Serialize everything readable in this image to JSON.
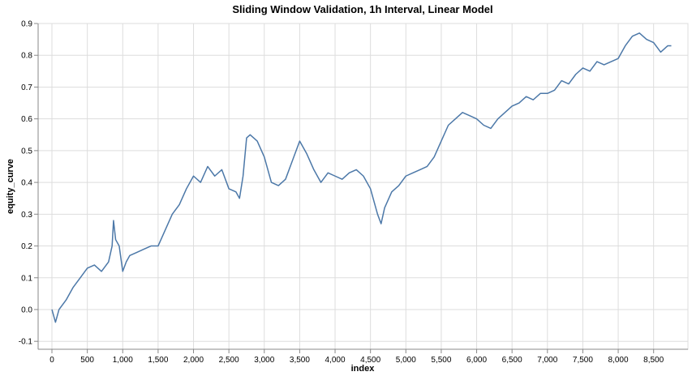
{
  "chart_data": {
    "type": "line",
    "title": "Sliding Window Validation, 1h Interval, Linear Model",
    "x_label": "index",
    "y_label": "equity_curve",
    "grid": true,
    "xlim": [
      -195,
      8985
    ],
    "ylim": [
      -0.125,
      0.9
    ],
    "xticks": [
      0,
      500,
      {
        "value": 1000,
        "label": "1,000"
      },
      {
        "value": 1500,
        "label": "1,500"
      },
      {
        "value": 2000,
        "label": "2,000"
      },
      {
        "value": 2500,
        "label": "2,500"
      },
      {
        "value": 3000,
        "label": "3,000"
      },
      {
        "value": 3500,
        "label": "3,500"
      },
      {
        "value": 4000,
        "label": "4,000"
      },
      {
        "value": 4500,
        "label": "4,500"
      },
      {
        "value": 5000,
        "label": "5,000"
      },
      {
        "value": 5500,
        "label": "5,500"
      },
      {
        "value": 6000,
        "label": "6,000"
      },
      {
        "value": 6500,
        "label": "6,500"
      },
      {
        "value": 7000,
        "label": "7,000"
      },
      {
        "value": 7500,
        "label": "7,500"
      },
      {
        "value": 8000,
        "label": "8,000"
      },
      {
        "value": 8500,
        "label": "8,500"
      }
    ],
    "yticks": [
      -0.1,
      {
        "value": 0,
        "label": "0.0"
      },
      0.1,
      0.2,
      0.3,
      0.4,
      0.5,
      0.6,
      0.7,
      0.8,
      0.9
    ],
    "x": [
      0,
      50,
      100,
      200,
      300,
      400,
      500,
      600,
      700,
      800,
      850,
      870,
      900,
      950,
      1000,
      1050,
      1100,
      1200,
      1300,
      1400,
      1500,
      1600,
      1700,
      1800,
      1900,
      2000,
      2100,
      2200,
      2300,
      2400,
      2500,
      2600,
      2650,
      2700,
      2750,
      2800,
      2900,
      3000,
      3100,
      3200,
      3300,
      3400,
      3500,
      3600,
      3700,
      3800,
      3900,
      4000,
      4100,
      4200,
      4300,
      4400,
      4500,
      4600,
      4650,
      4700,
      4800,
      4900,
      5000,
      5100,
      5200,
      5300,
      5400,
      5500,
      5600,
      5700,
      5800,
      5900,
      6000,
      6100,
      6200,
      6300,
      6400,
      6500,
      6600,
      6700,
      6800,
      6900,
      7000,
      7100,
      7200,
      7300,
      7400,
      7500,
      7600,
      7700,
      7800,
      7900,
      8000,
      8100,
      8200,
      8300,
      8400,
      8500,
      8600,
      8700,
      8750
    ],
    "series": [
      {
        "name": "equity_curve",
        "color": "#4c78a8",
        "values": [
          0.0,
          -0.04,
          0.0,
          0.03,
          0.07,
          0.1,
          0.13,
          0.14,
          0.12,
          0.15,
          0.2,
          0.28,
          0.22,
          0.2,
          0.12,
          0.15,
          0.17,
          0.18,
          0.19,
          0.2,
          0.2,
          0.25,
          0.3,
          0.33,
          0.38,
          0.42,
          0.4,
          0.45,
          0.42,
          0.44,
          0.38,
          0.37,
          0.35,
          0.42,
          0.54,
          0.55,
          0.53,
          0.48,
          0.4,
          0.39,
          0.41,
          0.47,
          0.53,
          0.49,
          0.44,
          0.4,
          0.43,
          0.42,
          0.41,
          0.43,
          0.44,
          0.42,
          0.38,
          0.3,
          0.27,
          0.32,
          0.37,
          0.39,
          0.42,
          0.43,
          0.44,
          0.45,
          0.48,
          0.53,
          0.58,
          0.6,
          0.62,
          0.61,
          0.6,
          0.58,
          0.57,
          0.6,
          0.62,
          0.64,
          0.65,
          0.67,
          0.66,
          0.68,
          0.68,
          0.69,
          0.72,
          0.71,
          0.74,
          0.76,
          0.75,
          0.78,
          0.77,
          0.78,
          0.79,
          0.83,
          0.86,
          0.87,
          0.85,
          0.84,
          0.81,
          0.83,
          0.83
        ]
      }
    ]
  }
}
